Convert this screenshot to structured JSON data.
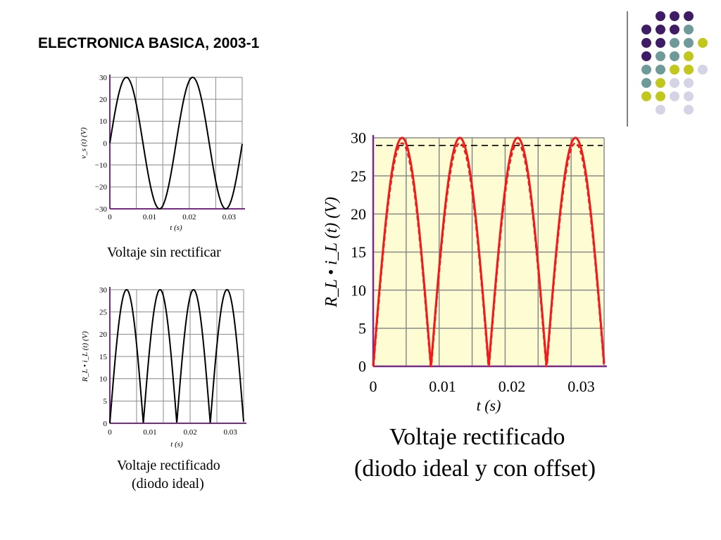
{
  "slide": {
    "title": "ELECTRONICA BASICA, 2003-1",
    "captions": {
      "chart1": "Voltaje sin rectificar",
      "chart2_line1": "Voltaje rectificado",
      "chart2_line2": "(diodo ideal)",
      "chart3_line1": "Voltaje rectificado",
      "chart3_line2": "(diodo ideal y con offset)"
    },
    "decor_colors": {
      "purple": "#3f1c66",
      "teal": "#6f9a9a",
      "olive": "#c2c71c",
      "lavender": "#d4d4e6",
      "divider": "#808080"
    }
  },
  "chart_data": [
    {
      "type": "line",
      "xlabel": "t (s)",
      "ylabel": "v_s (t) (V)",
      "xlim": [
        0,
        0.0333
      ],
      "ylim": [
        -30,
        30
      ],
      "xticks": [
        "0",
        "0.01",
        "0.02",
        "0.03"
      ],
      "yticks": [
        "30",
        "20",
        "10",
        "0",
        "−10",
        "−20",
        "−30"
      ],
      "series": [
        {
          "x_start": 0,
          "x_end": 0.0333,
          "amplitude": 30,
          "frequency_hz": 60,
          "waveform": "sine",
          "color": "#000000"
        }
      ]
    },
    {
      "type": "line",
      "xlabel": "t (s)",
      "ylabel": "R_L • i_L (t) (V)",
      "xlim": [
        0,
        0.0333
      ],
      "ylim": [
        0,
        30
      ],
      "xticks": [
        "0",
        "0.01",
        "0.02",
        "0.03"
      ],
      "yticks": [
        "30",
        "25",
        "20",
        "15",
        "10",
        "5",
        "0"
      ],
      "series": [
        {
          "x_start": 0,
          "x_end": 0.0333,
          "amplitude": 30,
          "frequency_hz": 60,
          "waveform": "full-wave rectified sine",
          "color": "#000000"
        }
      ]
    },
    {
      "type": "line",
      "xlabel": "t (s)",
      "ylabel": "R_L • i_L (t) (V)",
      "xlim": [
        0,
        0.0333
      ],
      "ylim": [
        0,
        30
      ],
      "xticks": [
        "0",
        "0.01",
        "0.02",
        "0.03"
      ],
      "yticks": [
        "30",
        "25",
        "20",
        "15",
        "10",
        "5",
        "0"
      ],
      "background": "#fdfcd2",
      "reference_line": {
        "y": 29,
        "style": "dashed",
        "color": "#000000"
      },
      "series": [
        {
          "x_start": 0,
          "x_end": 0.0333,
          "amplitude": 30,
          "frequency_hz": 60,
          "waveform": "full-wave rectified sine",
          "color": "#ee1c1c"
        },
        {
          "x_start": 0,
          "x_end": 0.0333,
          "amplitude": 29.3,
          "offset": 0.7,
          "frequency_hz": 60,
          "waveform": "full-wave rectified sine with diode offset",
          "color": "#ee1c1c",
          "style": "dashed"
        }
      ]
    }
  ]
}
